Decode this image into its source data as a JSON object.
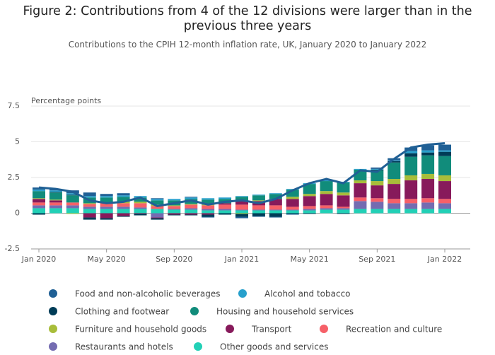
{
  "chart_data": {
    "type": "bar",
    "title": "Figure 2: Contributions from 4 of the 12 divisions were larger than in the previous three years",
    "subtitle": "Contributions to the CPIH 12-month inflation rate, UK, January 2020 to January 2022",
    "y_label": "Percentage points",
    "stacked": true,
    "categories": [
      "Jan 2020",
      null,
      null,
      null,
      "May 2020",
      null,
      null,
      null,
      "Sep 2020",
      null,
      null,
      null,
      "Jan 2021",
      null,
      null,
      null,
      "May 2021",
      null,
      null,
      null,
      "Sep 2021",
      null,
      null,
      null,
      "Jan 2022"
    ],
    "ylim": [
      -2.5,
      7.5
    ],
    "yticks": [
      -2.5,
      0,
      2.5,
      5,
      7.5
    ],
    "grid": true,
    "series": [
      {
        "name": "Other goods and services",
        "color": "#22d0b6",
        "values": [
          0.35,
          0.35,
          0.35,
          0.3,
          0.3,
          0.3,
          0.3,
          0.3,
          0.25,
          0.25,
          0.2,
          0.2,
          0.2,
          0.2,
          0.2,
          0.2,
          0.2,
          0.25,
          0.25,
          0.3,
          0.3,
          0.3,
          0.3,
          0.3,
          0.3
        ]
      },
      {
        "name": "Restaurants and hotels",
        "color": "#746cb1",
        "values": [
          0.2,
          0.2,
          0.2,
          0.15,
          0.15,
          0.15,
          0.1,
          -0.3,
          0.05,
          0.1,
          0.1,
          0.1,
          0.05,
          0.05,
          0.05,
          0.05,
          0.1,
          0.1,
          0.1,
          0.55,
          0.5,
          0.4,
          0.4,
          0.45,
          0.4
        ]
      },
      {
        "name": "Recreation and culture",
        "color": "#f66068",
        "values": [
          0.2,
          0.2,
          0.2,
          0.2,
          0.25,
          0.25,
          0.3,
          0.2,
          0.2,
          0.25,
          0.25,
          0.3,
          0.35,
          0.3,
          0.3,
          0.2,
          0.2,
          0.2,
          0.1,
          0.25,
          0.25,
          0.3,
          0.3,
          0.3,
          0.3
        ]
      },
      {
        "name": "Transport",
        "color": "#871a5b",
        "values": [
          0.25,
          0.15,
          0.0,
          -0.3,
          -0.35,
          -0.2,
          -0.05,
          -0.05,
          -0.1,
          -0.1,
          -0.1,
          0.1,
          0.25,
          0.3,
          0.45,
          0.55,
          0.7,
          0.8,
          0.8,
          1.0,
          0.9,
          1.05,
          1.3,
          1.35,
          1.25
        ]
      },
      {
        "name": "Furniture and household goods",
        "color": "#a8bd3a",
        "values": [
          0.05,
          0.05,
          -0.05,
          0.05,
          0.05,
          0.1,
          0.1,
          0.1,
          0.05,
          0.05,
          0.05,
          0.0,
          -0.05,
          0.05,
          0.0,
          0.15,
          0.15,
          0.2,
          0.2,
          0.2,
          0.3,
          0.35,
          0.35,
          0.35,
          0.4
        ]
      },
      {
        "name": "Housing and household services",
        "color": "#118c7b",
        "values": [
          0.5,
          0.5,
          0.5,
          0.4,
          0.35,
          0.35,
          0.3,
          0.3,
          0.35,
          0.35,
          0.35,
          0.3,
          0.3,
          0.35,
          0.35,
          0.5,
          0.7,
          0.7,
          0.7,
          0.75,
          0.75,
          1.15,
          1.3,
          1.3,
          1.35
        ]
      },
      {
        "name": "Clothing and footwear",
        "color": "#003c57",
        "values": [
          -0.1,
          0.05,
          0.05,
          -0.15,
          -0.1,
          -0.05,
          -0.1,
          -0.1,
          -0.05,
          -0.05,
          -0.15,
          -0.1,
          -0.2,
          -0.2,
          -0.25,
          -0.05,
          -0.05,
          0.0,
          -0.05,
          0.0,
          0.05,
          0.1,
          0.25,
          0.2,
          0.3
        ]
      },
      {
        "name": "Alcohol and tobacco",
        "color": "#27a0cc",
        "values": [
          0.1,
          0.1,
          0.1,
          0.1,
          0.1,
          0.1,
          0.1,
          0.1,
          0.1,
          0.1,
          0.1,
          0.1,
          0.05,
          0.05,
          0.05,
          0.05,
          0.05,
          0.05,
          0.05,
          0.05,
          0.05,
          0.05,
          0.15,
          0.15,
          0.1
        ]
      },
      {
        "name": "Food and non-alcoholic beverages",
        "color": "#206095",
        "values": [
          0.15,
          0.1,
          0.2,
          0.25,
          0.15,
          0.15,
          0.0,
          0.05,
          0.0,
          0.05,
          -0.05,
          0.0,
          -0.1,
          -0.05,
          -0.05,
          -0.05,
          0.0,
          0.05,
          0.0,
          0.0,
          0.1,
          0.15,
          0.25,
          0.35,
          0.4
        ]
      },
      {
        "type": "line",
        "color": "#206095",
        "values": [
          1.8,
          1.7,
          1.5,
          0.9,
          0.7,
          0.8,
          1.1,
          0.5,
          0.7,
          0.9,
          0.6,
          0.8,
          0.9,
          0.7,
          1.0,
          1.6,
          2.1,
          2.4,
          2.1,
          3.0,
          2.9,
          3.8,
          4.6,
          4.8,
          4.9
        ]
      }
    ]
  }
}
